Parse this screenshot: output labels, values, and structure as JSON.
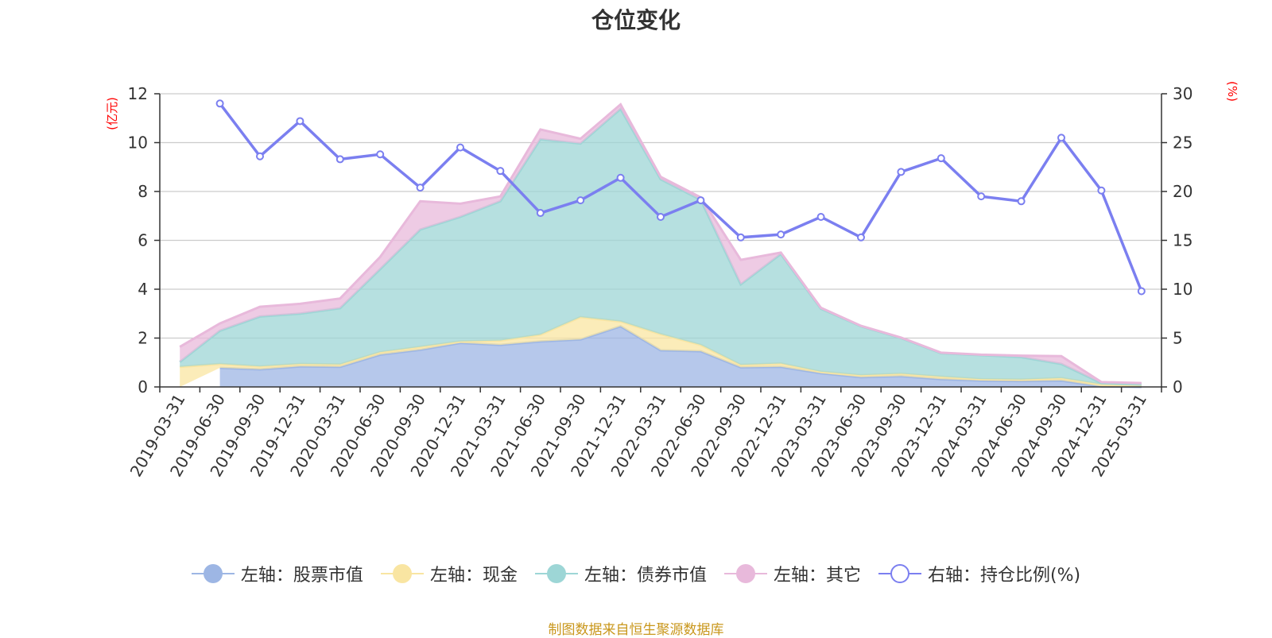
{
  "chart_data": {
    "type": "area",
    "title": "仓位变化",
    "left_axis_unit": "(亿元)",
    "right_axis_unit": "(%)",
    "ylim_left": [
      0,
      12
    ],
    "ylim_right": [
      0,
      30
    ],
    "yticks_left": [
      "0",
      "2",
      "4",
      "6",
      "8",
      "10",
      "12"
    ],
    "yticks_right": [
      "0",
      "5",
      "10",
      "15",
      "20",
      "25",
      "30"
    ],
    "grid": true,
    "legend_position": "bottom",
    "categories": [
      "2019-03-31",
      "2019-06-30",
      "2019-09-30",
      "2019-12-31",
      "2020-03-31",
      "2020-06-30",
      "2020-09-30",
      "2020-12-31",
      "2021-03-31",
      "2021-06-30",
      "2021-09-30",
      "2021-12-31",
      "2022-03-31",
      "2022-06-30",
      "2022-09-30",
      "2022-12-31",
      "2023-03-31",
      "2023-06-30",
      "2023-09-30",
      "2023-12-31",
      "2024-03-31",
      "2024-06-30",
      "2024-09-30",
      "2024-12-31",
      "2025-03-31"
    ],
    "stack_order": [
      "股票市值",
      "现金",
      "债券市值",
      "其它"
    ],
    "series": [
      {
        "name": "左轴：股票市值",
        "axis": "left",
        "type": "area-stacked",
        "color": "#9db6e4",
        "values": [
          null,
          0.78,
          0.72,
          0.84,
          0.82,
          1.32,
          1.52,
          1.8,
          1.72,
          1.86,
          1.94,
          2.48,
          1.5,
          1.46,
          0.8,
          0.82,
          0.56,
          0.4,
          0.44,
          0.32,
          0.26,
          0.24,
          0.26,
          0.02,
          0.0
        ]
      },
      {
        "name": "左轴：现金",
        "axis": "left",
        "type": "area-stacked",
        "color": "#f9e5a2",
        "values": [
          0.82,
          0.16,
          0.12,
          0.1,
          0.1,
          0.1,
          0.12,
          0.06,
          0.18,
          0.28,
          0.92,
          0.2,
          0.66,
          0.26,
          0.1,
          0.14,
          0.06,
          0.08,
          0.1,
          0.1,
          0.06,
          0.06,
          0.1,
          0.08,
          0.04
        ]
      },
      {
        "name": "左轴：债券市值",
        "axis": "left",
        "type": "area-stacked",
        "color": "#9dd6d6",
        "values": [
          0.2,
          1.36,
          2.04,
          2.06,
          2.3,
          3.4,
          4.8,
          5.1,
          5.7,
          8.0,
          7.1,
          8.7,
          6.34,
          5.94,
          3.3,
          4.48,
          2.58,
          2.0,
          1.46,
          0.96,
          0.98,
          0.92,
          0.58,
          0.06,
          0.1
        ]
      },
      {
        "name": "左轴：其它",
        "axis": "left",
        "type": "area-stacked",
        "color": "#e8b9db",
        "values": [
          0.62,
          0.3,
          0.4,
          0.4,
          0.4,
          0.5,
          1.16,
          0.54,
          0.2,
          0.4,
          0.2,
          0.18,
          0.1,
          0.1,
          1.0,
          0.06,
          0.04,
          0.02,
          0.02,
          0.02,
          0.02,
          0.06,
          0.32,
          0.04,
          0.02
        ]
      },
      {
        "name": "右轴：持仓比例(%)",
        "axis": "right",
        "type": "line",
        "color": "#7b7ff0",
        "values": [
          null,
          29.0,
          23.6,
          27.2,
          23.3,
          23.8,
          20.4,
          24.5,
          22.1,
          17.8,
          19.1,
          21.4,
          17.4,
          19.1,
          15.3,
          15.6,
          17.4,
          15.3,
          22.0,
          23.4,
          19.5,
          19.0,
          25.5,
          20.1,
          9.8
        ]
      }
    ]
  },
  "legend": [
    {
      "label": "左轴：股票市值",
      "color": "#9db6e4",
      "icon": "filled-circle-icon"
    },
    {
      "label": "左轴：现金",
      "color": "#f9e5a2",
      "icon": "filled-circle-icon"
    },
    {
      "label": "左轴：债券市值",
      "color": "#9dd6d6",
      "icon": "filled-circle-icon"
    },
    {
      "label": "左轴：其它",
      "color": "#e8b9db",
      "icon": "filled-circle-icon"
    },
    {
      "label": "右轴：持仓比例(%)",
      "color": "#7b7ff0",
      "icon": "hollow-circle-icon"
    }
  ],
  "source_note": "制图数据来自恒生聚源数据库",
  "colors": {
    "unit_label": "#ff0000",
    "axis": "#333333",
    "grid": "#cccccc",
    "source": "#c9971c"
  }
}
